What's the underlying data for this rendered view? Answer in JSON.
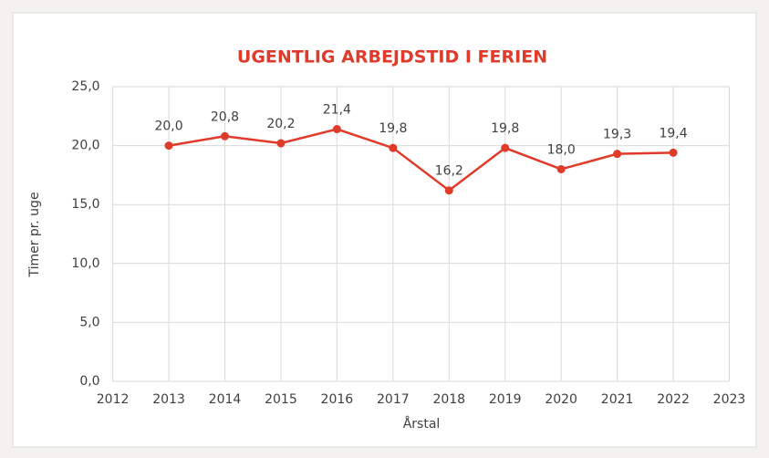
{
  "chart_data": {
    "type": "line",
    "title": "UGENTLIG ARBEJDSTID I FERIEN",
    "x_label": "Årstal",
    "y_label": "Timer pr. uge",
    "x": [
      2013,
      2014,
      2015,
      2016,
      2017,
      2018,
      2019,
      2020,
      2021,
      2022
    ],
    "series": [
      {
        "name": "Timer pr. uge",
        "color": "#e03a2a",
        "values": [
          20.0,
          20.8,
          20.2,
          21.4,
          19.8,
          16.2,
          19.8,
          18.0,
          19.3,
          19.4
        ],
        "value_labels": [
          "20,0",
          "20,8",
          "20,2",
          "21,4",
          "19,8",
          "16,2",
          "19,8",
          "18,0",
          "19,3",
          "19,4"
        ]
      }
    ],
    "xlim": [
      2012,
      2023
    ],
    "xticks": [
      2012,
      2013,
      2014,
      2015,
      2016,
      2017,
      2018,
      2019,
      2020,
      2021,
      2022,
      2023
    ],
    "ylim": [
      0,
      25
    ],
    "yticks": [
      {
        "value": 0,
        "label": "0,0"
      },
      {
        "value": 5,
        "label": "5,0"
      },
      {
        "value": 10,
        "label": "10,0"
      },
      {
        "value": 15,
        "label": "15,0"
      },
      {
        "value": 20,
        "label": "20,0"
      },
      {
        "value": 25,
        "label": "25,0"
      }
    ],
    "grid": true
  }
}
